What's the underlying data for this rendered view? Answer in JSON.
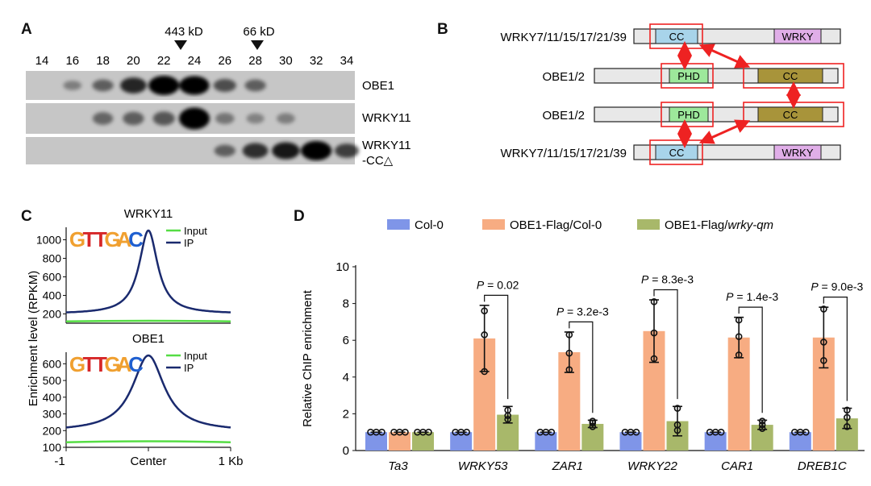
{
  "panels": {
    "a": "A",
    "b": "B",
    "c": "C",
    "d": "D"
  },
  "panel_a": {
    "markers": [
      {
        "label": "443 kD"
      },
      {
        "label": "66 kD"
      }
    ],
    "fractions": [
      "14",
      "16",
      "18",
      "20",
      "22",
      "24",
      "26",
      "28",
      "30",
      "32",
      "34"
    ],
    "blots": [
      {
        "label": "OBE1",
        "bands": [
          0,
          0.15,
          0.35,
          0.7,
          1,
          0.95,
          0.45,
          0.35,
          0,
          0,
          0
        ]
      },
      {
        "label": "WRKY11",
        "bands": [
          0,
          0,
          0.3,
          0.35,
          0.4,
          1,
          0.2,
          0.12,
          0.15,
          0,
          0
        ]
      },
      {
        "label_line1": "WRKY11",
        "label_line2": "-CC△",
        "bands": [
          0,
          0,
          0,
          0,
          0,
          0,
          0.35,
          0.65,
          0.8,
          1,
          0.55
        ]
      }
    ]
  },
  "panel_b": {
    "rows": [
      {
        "label": "WRKY7/11/15/17/21/39",
        "domains": [
          "CC",
          "WRKY"
        ]
      },
      {
        "label": "OBE1/2",
        "domains": [
          "PHD",
          "CC"
        ]
      },
      {
        "label": "OBE1/2",
        "domains": [
          "PHD",
          "CC"
        ]
      },
      {
        "label": "WRKY7/11/15/17/21/39",
        "domains": [
          "CC",
          "WRKY"
        ]
      }
    ],
    "colors": {
      "cc_w": "#a8d4ea",
      "wrky": "#e0aee8",
      "phd": "#9de89b",
      "cc_o": "#a8943a",
      "box": "#ee2222",
      "bar": "#e8e8e8"
    }
  },
  "panel_c": {
    "ylabel": "Enrichment level (RPKM)",
    "xticks": [
      "-1",
      "Center",
      "1 Kb"
    ],
    "legend": [
      "Input",
      "IP"
    ],
    "motif": "GTTGAC",
    "profiles": [
      {
        "title": "WRKY11",
        "yticks": [
          "1000",
          "800",
          "600",
          "400",
          "200"
        ],
        "ymin": 100,
        "ymax": 1100,
        "input": 120,
        "ip_base": 200,
        "ip_peak": 1100
      },
      {
        "title": "OBE1",
        "yticks": [
          "600",
          "500",
          "400",
          "300",
          "200",
          "100"
        ],
        "ymin": 100,
        "ymax": 650,
        "input": 130,
        "ip_base": 195,
        "ip_peak": 650
      }
    ],
    "colors": {
      "input": "#55dd44",
      "ip": "#1a2a6e"
    }
  },
  "chart_data": {
    "type": "bar",
    "title": "",
    "xlabel": "",
    "ylabel": "Relative ChIP enrichment",
    "ylim": [
      0,
      10
    ],
    "yticks": [
      "0",
      "2",
      "4",
      "6",
      "8",
      "10"
    ],
    "categories": [
      "Ta3",
      "WRKY53",
      "ZAR1",
      "WRKY22",
      "CAR1",
      "DREB1C"
    ],
    "series": [
      {
        "name": "Col-0",
        "color": "#7f95e8",
        "values": [
          1,
          1,
          1,
          1,
          1,
          1
        ],
        "errors": [
          0,
          0,
          0,
          0,
          0,
          0
        ]
      },
      {
        "name": "OBE1-Flag/Col-0",
        "color": "#f7ac82",
        "values": [
          1,
          6.1,
          5.35,
          6.5,
          6.15,
          6.15
        ],
        "errors": [
          0,
          1.8,
          1.1,
          1.7,
          1.1,
          1.65
        ]
      },
      {
        "name": "OBE1-Flag/",
        "name_italic": "wrky-qm",
        "color": "#a8b86a",
        "values": [
          1,
          1.95,
          1.45,
          1.6,
          1.4,
          1.75
        ],
        "errors": [
          0,
          0.45,
          0.2,
          0.8,
          0.25,
          0.55
        ]
      }
    ],
    "points": [
      [
        [
          1,
          1,
          1
        ],
        [
          1,
          1,
          1
        ],
        [
          1,
          1,
          1
        ]
      ],
      [
        [
          1,
          1,
          1
        ],
        [
          7.6,
          4.3,
          6.3
        ],
        [
          2.2,
          1.7,
          1.9
        ]
      ],
      [
        [
          1,
          1,
          1
        ],
        [
          6.3,
          4.4,
          5.3
        ],
        [
          1.6,
          1.3,
          1.5
        ]
      ],
      [
        [
          1,
          1,
          1
        ],
        [
          8.1,
          5,
          6.4
        ],
        [
          2.3,
          1.1,
          1.4
        ]
      ],
      [
        [
          1,
          1,
          1
        ],
        [
          7.1,
          5.2,
          6.2
        ],
        [
          1.6,
          1.2,
          1.4
        ]
      ],
      [
        [
          1,
          1,
          1
        ],
        [
          7.7,
          4.9,
          5.9
        ],
        [
          2.2,
          1.3,
          1.8
        ]
      ]
    ],
    "pvalues": [
      null,
      "= 0.02",
      "= 3.2e-3",
      "= 8.3e-3",
      "= 1.4e-3",
      "= 9.0e-3"
    ],
    "pvalue_prefix": "P"
  }
}
